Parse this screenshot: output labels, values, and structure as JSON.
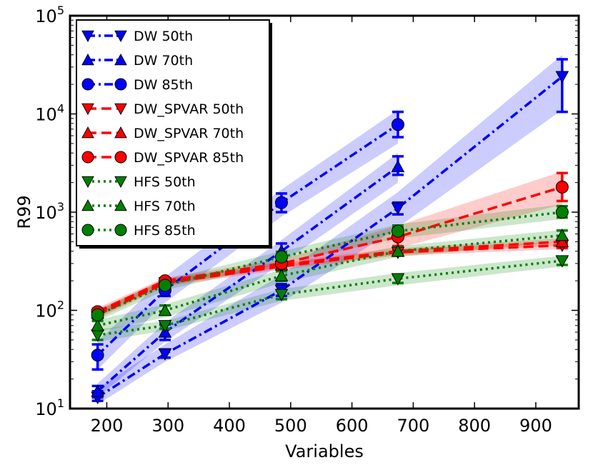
{
  "chart_data": {
    "type": "line",
    "title": "",
    "xlabel": "Variables",
    "ylabel": "R99",
    "xlim": [
      140,
      970
    ],
    "ylim": [
      10,
      100000
    ],
    "yscale": "log",
    "xticks": [
      200,
      300,
      400,
      500,
      600,
      700,
      800,
      900
    ],
    "yticks": [
      {
        "value": 10,
        "base": "10",
        "exp": "1"
      },
      {
        "value": 100,
        "base": "10",
        "exp": "2"
      },
      {
        "value": 1000,
        "base": "10",
        "exp": "3"
      },
      {
        "value": 10000,
        "base": "10",
        "exp": "4"
      },
      {
        "value": 100000,
        "base": "10",
        "exp": "5"
      }
    ],
    "grid": false,
    "legend_position": "top-left",
    "series": [
      {
        "name": "DW 50th",
        "color": "#0000ff",
        "linestyle": "dashdot",
        "marker": "triangle-down",
        "x": [
          185,
          295,
          485,
          675,
          943
        ],
        "y": [
          13,
          36,
          160,
          1100,
          24000
        ],
        "err_low": [
          12,
          33,
          140,
          950,
          10500
        ],
        "err_high": [
          15,
          40,
          185,
          1250,
          36000
        ],
        "band_low": [
          11,
          30,
          120,
          700,
          11000
        ],
        "band_high": [
          16,
          45,
          230,
          1600,
          40000
        ]
      },
      {
        "name": "DW 70th",
        "color": "#0000ff",
        "linestyle": "dashdot",
        "marker": "triangle-up",
        "x": [
          185,
          295,
          485,
          675
        ],
        "y": [
          15,
          60,
          400,
          2900
        ],
        "err_low": [
          13,
          50,
          330,
          2400
        ],
        "err_high": [
          17,
          72,
          480,
          3700
        ],
        "band_low": [
          13,
          48,
          300,
          2000
        ],
        "band_high": [
          18,
          75,
          520,
          4000
        ]
      },
      {
        "name": "DW 85th",
        "color": "#0000ff",
        "linestyle": "dashdot",
        "marker": "circle",
        "x": [
          185,
          295,
          485,
          675
        ],
        "y": [
          35,
          160,
          1250,
          7800
        ],
        "err_low": [
          25,
          140,
          1000,
          5800
        ],
        "err_high": [
          45,
          185,
          1550,
          10500
        ],
        "band_low": [
          25,
          120,
          900,
          5000
        ],
        "band_high": [
          48,
          220,
          1700,
          11000
        ]
      },
      {
        "name": "DW_SPVAR 50th",
        "color": "#ff0000",
        "linestyle": "dashed",
        "marker": "triangle-down",
        "x": [
          185,
          295,
          485,
          675,
          943
        ],
        "y": [
          90,
          190,
          280,
          390,
          460
        ],
        "err_low": [
          85,
          180,
          265,
          370,
          430
        ],
        "err_high": [
          96,
          200,
          295,
          410,
          490
        ],
        "band_low": [
          82,
          175,
          260,
          360,
          420
        ],
        "band_high": [
          98,
          205,
          300,
          420,
          500
        ]
      },
      {
        "name": "DW_SPVAR 70th",
        "color": "#ff0000",
        "linestyle": "dashed",
        "marker": "triangle-up",
        "x": [
          185,
          295,
          485,
          675,
          943
        ],
        "y": [
          94,
          195,
          290,
          400,
          500
        ],
        "err_low": [
          89,
          185,
          275,
          380,
          470
        ],
        "err_high": [
          100,
          205,
          305,
          420,
          530
        ],
        "band_low": [
          86,
          180,
          270,
          370,
          460
        ],
        "band_high": [
          102,
          210,
          310,
          430,
          540
        ]
      },
      {
        "name": "DW_SPVAR 85th",
        "color": "#ff0000",
        "linestyle": "dashed",
        "marker": "circle",
        "x": [
          185,
          295,
          485,
          675,
          943
        ],
        "y": [
          97,
          200,
          300,
          560,
          1800
        ],
        "err_low": [
          91,
          190,
          280,
          450,
          1300
        ],
        "err_high": [
          104,
          212,
          320,
          700,
          2500
        ],
        "band_low": [
          88,
          185,
          275,
          430,
          1200
        ],
        "band_high": [
          106,
          215,
          330,
          730,
          2600
        ]
      },
      {
        "name": "HFS 50th",
        "color": "#008000",
        "linestyle": "dotted",
        "marker": "triangle-down",
        "x": [
          185,
          295,
          485,
          675,
          943
        ],
        "y": [
          56,
          70,
          145,
          210,
          320
        ],
        "err_low": [
          50,
          65,
          130,
          190,
          290
        ],
        "err_high": [
          62,
          76,
          160,
          230,
          350
        ],
        "band_low": [
          48,
          62,
          125,
          180,
          280
        ],
        "band_high": [
          64,
          78,
          165,
          240,
          360
        ]
      },
      {
        "name": "HFS 70th",
        "color": "#008000",
        "linestyle": "dotted",
        "marker": "triangle-up",
        "x": [
          185,
          295,
          485,
          675,
          943
        ],
        "y": [
          70,
          100,
          225,
          400,
          580
        ],
        "err_low": [
          63,
          90,
          200,
          360,
          520
        ],
        "err_high": [
          78,
          112,
          250,
          440,
          650
        ],
        "band_low": [
          60,
          85,
          190,
          350,
          500
        ],
        "band_high": [
          80,
          115,
          260,
          450,
          660
        ]
      },
      {
        "name": "HFS 85th",
        "color": "#008000",
        "linestyle": "dotted",
        "marker": "circle",
        "x": [
          185,
          295,
          485,
          675,
          943
        ],
        "y": [
          90,
          180,
          350,
          640,
          1000
        ],
        "err_low": [
          82,
          165,
          310,
          560,
          880
        ],
        "err_high": [
          98,
          198,
          395,
          730,
          1150
        ],
        "band_low": [
          78,
          160,
          300,
          540,
          850
        ],
        "band_high": [
          100,
          205,
          400,
          750,
          1200
        ]
      }
    ]
  }
}
